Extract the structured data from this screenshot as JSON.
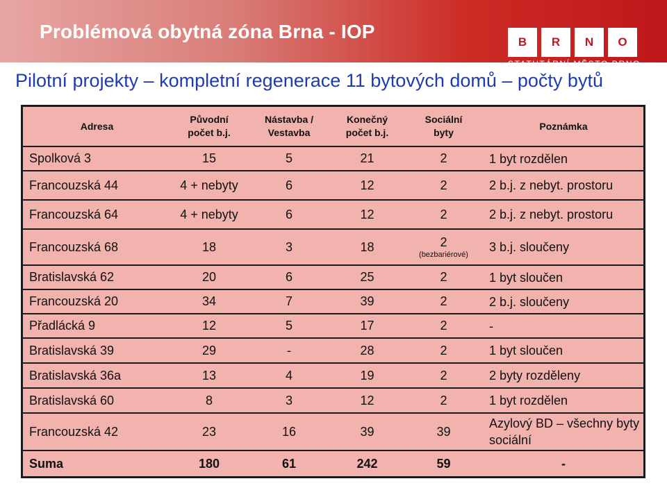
{
  "header": {
    "title": "Problémová obytná zóna Brna - IOP",
    "logo_letters": [
      "B",
      "R",
      "N",
      "O"
    ],
    "logo_caption": "STATUTÁRNÍ MĚSTO BRNO"
  },
  "subtitle": "Pilotní projekty – kompletní regenerace 11 bytových domů – počty bytů",
  "table": {
    "headers": [
      "Adresa",
      "Původní\npočet b.j.",
      "Nástavba /\nVestavba",
      "Konečný\npočet b.j.",
      "Sociální\nbyty",
      "Poznámka"
    ],
    "rows": [
      {
        "address": "Spolková 3",
        "original": "15",
        "extension": "5",
        "final": "21",
        "social": "2",
        "social_note": "",
        "note": "1 byt rozdělen"
      },
      {
        "address": "Francouzská 44",
        "original": "4 + nebyty",
        "extension": "6",
        "final": "12",
        "social": "2",
        "social_note": "",
        "note": "2 b.j. z nebyt. prostoru"
      },
      {
        "address": "Francouzská 64",
        "original": "4 + nebyty",
        "extension": "6",
        "final": "12",
        "social": "2",
        "social_note": "",
        "note": "2 b.j. z nebyt. prostoru"
      },
      {
        "address": "Francouzská 68",
        "original": "18",
        "extension": "3",
        "final": "18",
        "social": "2",
        "social_note": "(bezbariérové)",
        "note": "3 b.j. sloučeny"
      },
      {
        "address": "Bratislavská 62",
        "original": "20",
        "extension": "6",
        "final": "25",
        "social": "2",
        "social_note": "",
        "note": "1 byt sloučen"
      },
      {
        "address": "Francouzská 20",
        "original": "34",
        "extension": "7",
        "final": "39",
        "social": "2",
        "social_note": "",
        "note": "2 b.j. sloučeny"
      },
      {
        "address": "Přadlácká 9",
        "original": "12",
        "extension": "5",
        "final": "17",
        "social": "2",
        "social_note": "",
        "note": "-"
      },
      {
        "address": "Bratislavská 39",
        "original": "29",
        "extension": "-",
        "final": "28",
        "social": "2",
        "social_note": "",
        "note": "1 byt sloučen"
      },
      {
        "address": "Bratislavská 36a",
        "original": "13",
        "extension": "4",
        "final": "19",
        "social": "2",
        "social_note": "",
        "note": "2 byty rozděleny"
      },
      {
        "address": "Bratislavská 60",
        "original": "8",
        "extension": "3",
        "final": "12",
        "social": "2",
        "social_note": "",
        "note": "1 byt rozdělen"
      },
      {
        "address": "Francouzská 42",
        "original": "23",
        "extension": "16",
        "final": "39",
        "social": "39",
        "social_note": "",
        "note": "Azylový BD – všechny byty sociální"
      }
    ],
    "sum": {
      "address": "Suma",
      "original": "180",
      "extension": "61",
      "final": "242",
      "social": "59",
      "note": "-"
    }
  }
}
